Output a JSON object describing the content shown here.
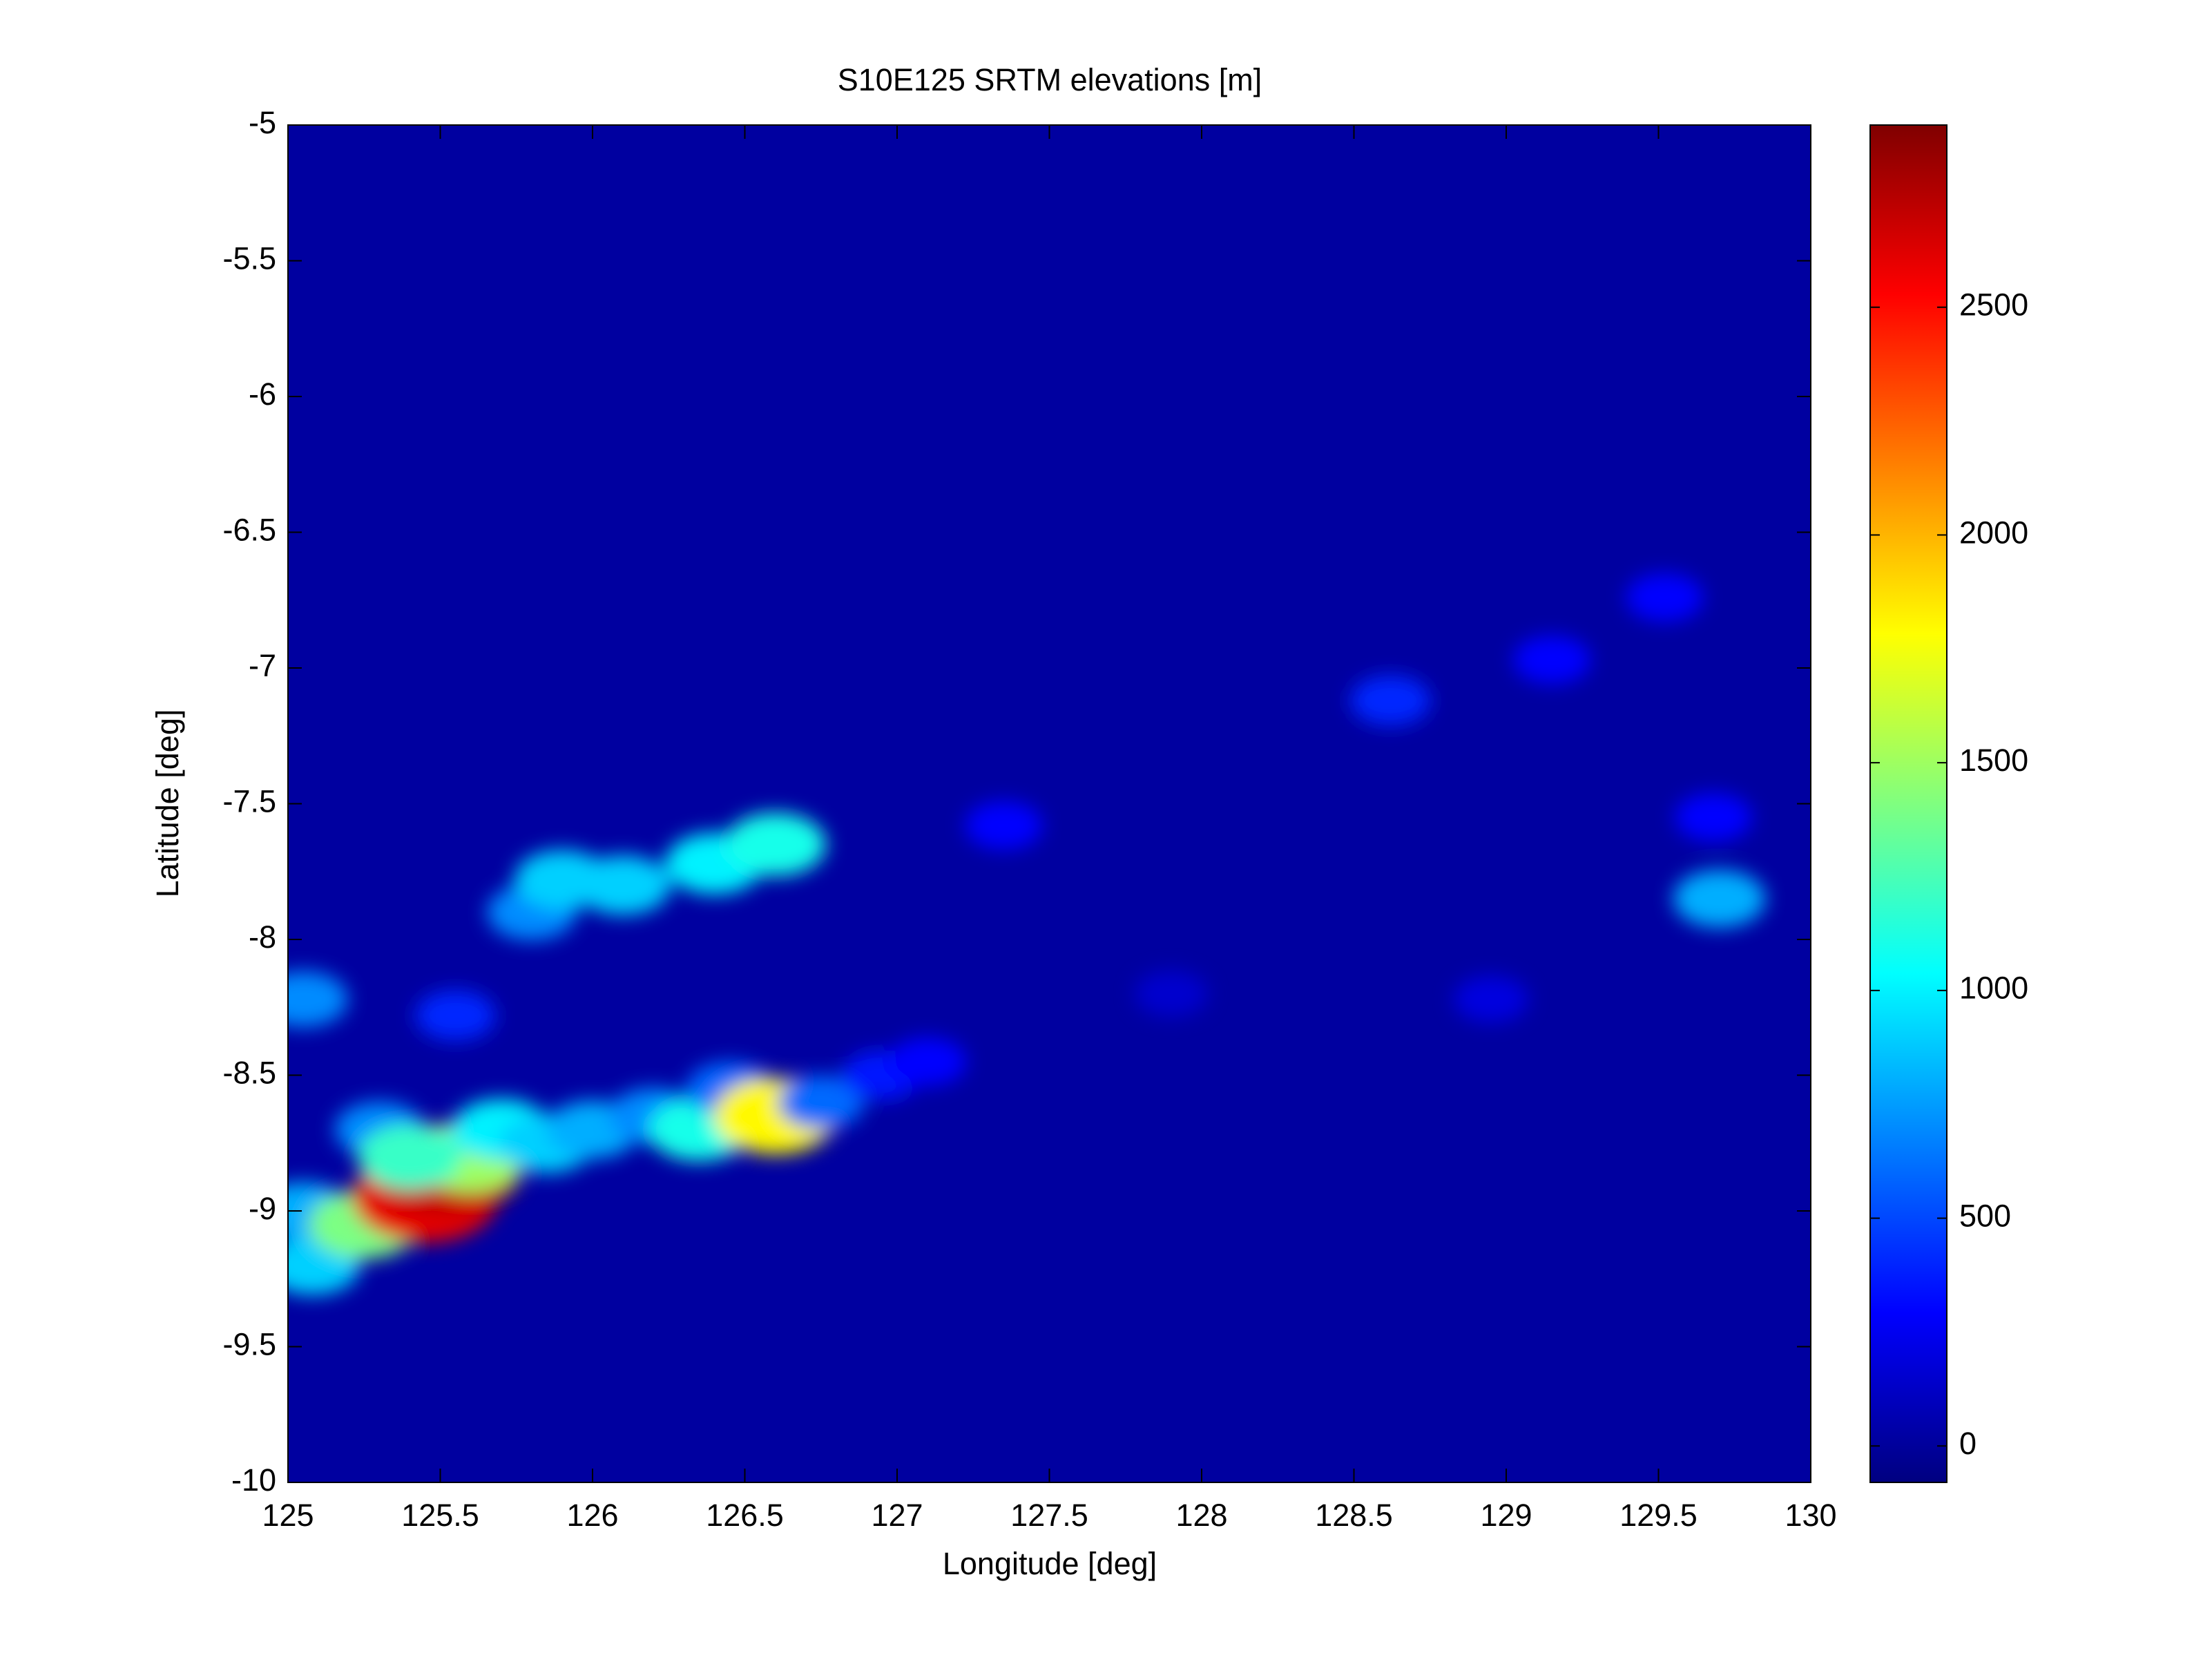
{
  "chart_data": {
    "type": "heatmap",
    "title": "S10E125 SRTM elevations [m]",
    "xlabel": "Longitude [deg]",
    "ylabel": "Latitude [deg]",
    "xlim": [
      125,
      130
    ],
    "ylim": [
      -10,
      -5
    ],
    "xticks": [
      125,
      125.5,
      126,
      126.5,
      127,
      127.5,
      128,
      128.5,
      129,
      129.5,
      130
    ],
    "yticks": [
      -10,
      -9.5,
      -9,
      -8.5,
      -8,
      -7.5,
      -7,
      -6.5,
      -6,
      -5.5,
      -5
    ],
    "colormap": "jet",
    "clim": [
      -80,
      2900
    ],
    "cticks": [
      0,
      500,
      1000,
      1500,
      2000,
      2500
    ],
    "x": [
      125.05,
      125.08,
      125.05,
      125.25,
      125.3,
      125.45,
      125.52,
      125.6,
      125.4,
      125.7,
      125.85,
      126.0,
      126.2,
      126.35,
      126.45,
      126.6,
      126.75,
      126.95,
      127.1,
      125.55,
      125.8,
      125.9,
      126.1,
      126.4,
      126.6,
      127.35,
      128.62,
      129.15,
      129.52,
      129.7,
      127.9,
      128.95,
      129.68
    ],
    "y": [
      -8.22,
      -9.2,
      -9.0,
      -9.05,
      -8.7,
      -8.95,
      -8.85,
      -8.8,
      -8.8,
      -8.7,
      -8.75,
      -8.7,
      -8.65,
      -8.7,
      -8.55,
      -8.65,
      -8.6,
      -8.5,
      -8.45,
      -8.28,
      -7.9,
      -7.78,
      -7.8,
      -7.72,
      -7.65,
      -7.58,
      -7.12,
      -6.97,
      -6.74,
      -7.85,
      -8.2,
      -8.22,
      -7.55
    ],
    "values": [
      700,
      900,
      800,
      1400,
      700,
      2600,
      2700,
      1500,
      1200,
      1000,
      900,
      800,
      700,
      1100,
      600,
      1800,
      600,
      350,
      300,
      400,
      700,
      900,
      900,
      1000,
      1100,
      300,
      400,
      300,
      300,
      800,
      150,
      200,
      300
    ]
  }
}
